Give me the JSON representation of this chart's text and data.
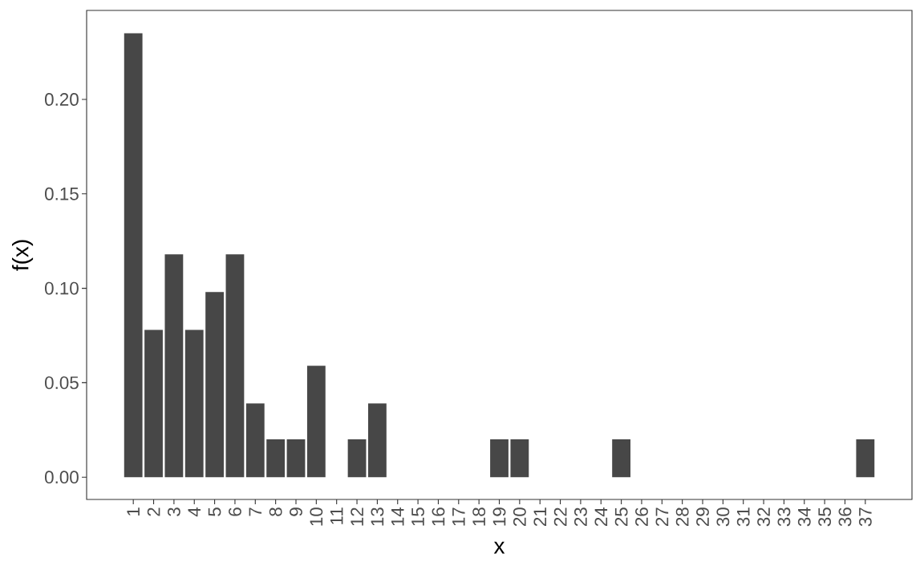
{
  "chart_data": {
    "type": "bar",
    "xlabel": "x",
    "ylabel": "f(x)",
    "x": [
      1,
      2,
      3,
      4,
      5,
      6,
      7,
      8,
      9,
      10,
      12,
      13,
      19,
      20,
      25,
      37
    ],
    "values": [
      0.235,
      0.078,
      0.118,
      0.078,
      0.098,
      0.118,
      0.039,
      0.02,
      0.02,
      0.059,
      0.02,
      0.039,
      0.02,
      0.02,
      0.02,
      0.02
    ],
    "color": "#474747",
    "xlim": [
      -1.295,
      39.295
    ],
    "xticks": [
      1,
      2,
      3,
      4,
      5,
      6,
      7,
      8,
      9,
      10,
      11,
      12,
      13,
      14,
      15,
      16,
      17,
      18,
      19,
      20,
      21,
      22,
      23,
      24,
      25,
      26,
      27,
      28,
      29,
      30,
      31,
      32,
      33,
      34,
      35,
      36,
      37
    ],
    "ylim": [
      -0.0118,
      0.2471
    ],
    "yticks": [
      {
        "value": 0,
        "label": "0.00"
      },
      {
        "value": 0.05,
        "label": "0.05"
      },
      {
        "value": 0.1,
        "label": "0.10"
      },
      {
        "value": 0.15,
        "label": "0.15"
      },
      {
        "value": 0.2,
        "label": "0.20"
      }
    ]
  }
}
